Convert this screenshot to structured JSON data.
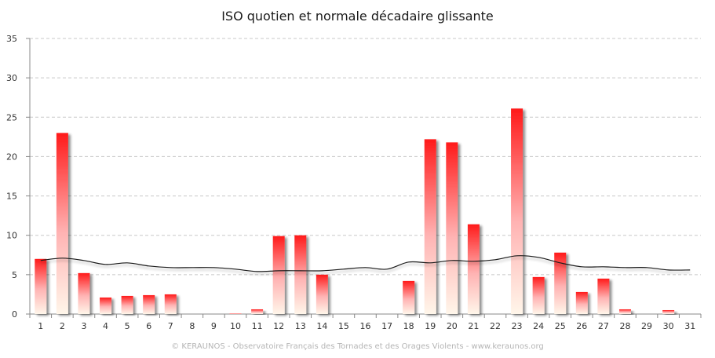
{
  "chart_data": {
    "type": "bar",
    "title": "ISO quotien et normale décadaire glissante",
    "xlabel": "",
    "ylabel": "",
    "ylim": [
      0,
      35
    ],
    "yticks": [
      0,
      5,
      10,
      15,
      20,
      25,
      30,
      35
    ],
    "grid": true,
    "categories": [
      "1",
      "2",
      "3",
      "4",
      "5",
      "6",
      "7",
      "8",
      "9",
      "10",
      "11",
      "12",
      "13",
      "14",
      "15",
      "16",
      "17",
      "18",
      "19",
      "20",
      "21",
      "22",
      "23",
      "24",
      "25",
      "26",
      "27",
      "28",
      "29",
      "30",
      "31"
    ],
    "series": [
      {
        "type": "bar",
        "color": "#ff1a1a",
        "values": [
          7.0,
          23.0,
          5.2,
          2.1,
          2.3,
          2.4,
          2.5,
          0,
          0,
          0.1,
          0.6,
          9.9,
          10.0,
          5.0,
          0,
          0,
          0,
          4.2,
          22.2,
          21.8,
          11.4,
          0,
          26.1,
          4.7,
          7.8,
          2.8,
          4.5,
          0.6,
          0,
          0.5,
          0
        ]
      },
      {
        "type": "line",
        "color": "#1a1a1a",
        "values": [
          6.8,
          7.1,
          6.8,
          6.3,
          6.5,
          6.1,
          5.9,
          5.9,
          5.9,
          5.7,
          5.4,
          5.5,
          5.5,
          5.5,
          5.7,
          5.9,
          5.7,
          6.6,
          6.5,
          6.8,
          6.7,
          6.9,
          7.4,
          7.2,
          6.5,
          6.0,
          6.0,
          5.9,
          5.9,
          5.6,
          5.6
        ]
      }
    ]
  },
  "footer": {
    "credit": "© KERAUNOS - Observatoire Français des Tornades et des Orages Violents - www.keraunos.org"
  }
}
